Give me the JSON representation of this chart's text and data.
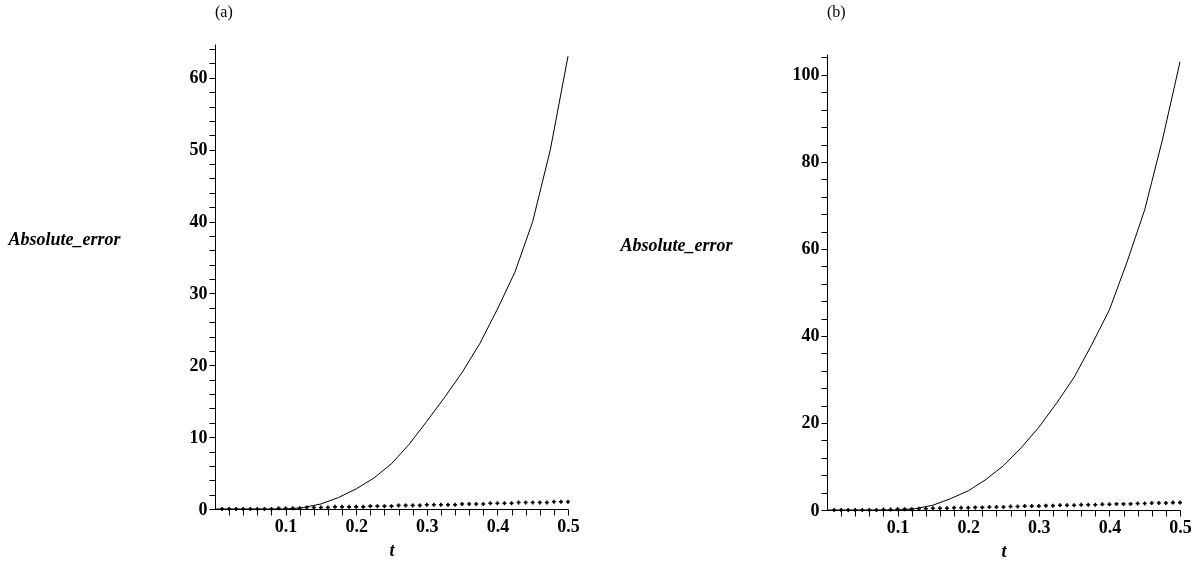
{
  "chart_data": [
    {
      "type": "line",
      "title": "(a)",
      "xlabel": "t",
      "ylabel": "Absolute_error",
      "xlim": [
        0,
        0.5
      ],
      "ylim": [
        0,
        64.7
      ],
      "xticks": [
        {
          "value": 0.02,
          "label": null
        },
        {
          "value": 0.04,
          "label": null
        },
        {
          "value": 0.06,
          "label": null
        },
        {
          "value": 0.08,
          "label": null
        },
        0.1,
        {
          "value": 0.12,
          "label": null
        },
        {
          "value": 0.14,
          "label": null
        },
        {
          "value": 0.16,
          "label": null
        },
        {
          "value": 0.18,
          "label": null
        },
        0.2,
        {
          "value": 0.22,
          "label": null
        },
        {
          "value": 0.24,
          "label": null
        },
        {
          "value": 0.26,
          "label": null
        },
        {
          "value": 0.28,
          "label": null
        },
        0.3,
        {
          "value": 0.32,
          "label": null
        },
        {
          "value": 0.34,
          "label": null
        },
        {
          "value": 0.36,
          "label": null
        },
        {
          "value": 0.38,
          "label": null
        },
        0.4,
        {
          "value": 0.42,
          "label": null
        },
        {
          "value": 0.44,
          "label": null
        },
        {
          "value": 0.46,
          "label": null
        },
        {
          "value": 0.48,
          "label": null
        },
        0.5
      ],
      "yticks": [
        0,
        {
          "value": 2,
          "label": null
        },
        {
          "value": 4,
          "label": null
        },
        {
          "value": 6,
          "label": null
        },
        {
          "value": 8,
          "label": null
        },
        10,
        {
          "value": 12,
          "label": null
        },
        {
          "value": 14,
          "label": null
        },
        {
          "value": 16,
          "label": null
        },
        {
          "value": 18,
          "label": null
        },
        20,
        {
          "value": 22,
          "label": null
        },
        {
          "value": 24,
          "label": null
        },
        {
          "value": 26,
          "label": null
        },
        {
          "value": 28,
          "label": null
        },
        30,
        {
          "value": 32,
          "label": null
        },
        {
          "value": 34,
          "label": null
        },
        {
          "value": 36,
          "label": null
        },
        {
          "value": 38,
          "label": null
        },
        40,
        {
          "value": 42,
          "label": null
        },
        {
          "value": 44,
          "label": null
        },
        {
          "value": 46,
          "label": null
        },
        {
          "value": 48,
          "label": null
        },
        50,
        {
          "value": 52,
          "label": null
        },
        {
          "value": 54,
          "label": null
        },
        {
          "value": 56,
          "label": null
        },
        {
          "value": 58,
          "label": null
        },
        60,
        {
          "value": 62,
          "label": null
        },
        {
          "value": 64,
          "label": null
        }
      ],
      "series": [
        {
          "type": "line",
          "color": "#000000",
          "x": [
            0,
            0.05,
            0.1,
            0.125,
            0.15,
            0.175,
            0.2,
            0.225,
            0.25,
            0.275,
            0.3,
            0.325,
            0.35,
            0.375,
            0.4,
            0.425,
            0.45,
            0.475,
            0.5
          ],
          "values": [
            0,
            0,
            0,
            0.2,
            0.7,
            1.6,
            2.8,
            4.3,
            6.3,
            9,
            12.2,
            15.5,
            19,
            23,
            27.8,
            33,
            40,
            50,
            63
          ]
        },
        {
          "type": "scatter",
          "marker": "cross",
          "color": "#000000",
          "x": [
            0.01,
            0.02,
            0.03,
            0.04,
            0.05,
            0.06,
            0.07,
            0.08,
            0.09,
            0.1,
            0.11,
            0.12,
            0.13,
            0.14,
            0.15,
            0.16,
            0.17,
            0.18,
            0.19,
            0.2,
            0.21,
            0.22,
            0.23,
            0.24,
            0.25,
            0.26,
            0.27,
            0.28,
            0.29,
            0.3,
            0.31,
            0.32,
            0.33,
            0.34,
            0.35,
            0.36,
            0.37,
            0.38,
            0.39,
            0.4,
            0.41,
            0.42,
            0.43,
            0.44,
            0.45,
            0.46,
            0.47,
            0.48,
            0.49,
            0.5
          ],
          "values": [
            0,
            0,
            0,
            0,
            0,
            0,
            0,
            0,
            0.1,
            0.1,
            0.1,
            0.1,
            0.2,
            0.2,
            0.2,
            0.2,
            0.3,
            0.3,
            0.3,
            0.3,
            0.3,
            0.4,
            0.4,
            0.4,
            0.4,
            0.5,
            0.5,
            0.5,
            0.5,
            0.6,
            0.6,
            0.6,
            0.6,
            0.6,
            0.7,
            0.7,
            0.7,
            0.7,
            0.8,
            0.8,
            0.8,
            0.8,
            0.9,
            0.9,
            0.9,
            0.9,
            0.9,
            1.0,
            1.0,
            1.0
          ]
        }
      ]
    },
    {
      "type": "line",
      "title": "(b)",
      "xlabel": "t",
      "ylabel": "Absolute_error",
      "xlim": [
        0,
        0.5
      ],
      "ylim": [
        0,
        104.8
      ],
      "xticks": [
        {
          "value": 0.02,
          "label": null
        },
        {
          "value": 0.04,
          "label": null
        },
        {
          "value": 0.06,
          "label": null
        },
        {
          "value": 0.08,
          "label": null
        },
        0.1,
        {
          "value": 0.12,
          "label": null
        },
        {
          "value": 0.14,
          "label": null
        },
        {
          "value": 0.16,
          "label": null
        },
        {
          "value": 0.18,
          "label": null
        },
        0.2,
        {
          "value": 0.22,
          "label": null
        },
        {
          "value": 0.24,
          "label": null
        },
        {
          "value": 0.26,
          "label": null
        },
        {
          "value": 0.28,
          "label": null
        },
        0.3,
        {
          "value": 0.32,
          "label": null
        },
        {
          "value": 0.34,
          "label": null
        },
        {
          "value": 0.36,
          "label": null
        },
        {
          "value": 0.38,
          "label": null
        },
        0.4,
        {
          "value": 0.42,
          "label": null
        },
        {
          "value": 0.44,
          "label": null
        },
        {
          "value": 0.46,
          "label": null
        },
        {
          "value": 0.48,
          "label": null
        },
        0.5
      ],
      "yticks": [
        0,
        {
          "value": 4,
          "label": null
        },
        {
          "value": 8,
          "label": null
        },
        {
          "value": 12,
          "label": null
        },
        {
          "value": 16,
          "label": null
        },
        20,
        {
          "value": 24,
          "label": null
        },
        {
          "value": 28,
          "label": null
        },
        {
          "value": 32,
          "label": null
        },
        {
          "value": 36,
          "label": null
        },
        40,
        {
          "value": 44,
          "label": null
        },
        {
          "value": 48,
          "label": null
        },
        {
          "value": 52,
          "label": null
        },
        {
          "value": 56,
          "label": null
        },
        60,
        {
          "value": 64,
          "label": null
        },
        {
          "value": 68,
          "label": null
        },
        {
          "value": 72,
          "label": null
        },
        {
          "value": 76,
          "label": null
        },
        80,
        {
          "value": 84,
          "label": null
        },
        {
          "value": 88,
          "label": null
        },
        {
          "value": 92,
          "label": null
        },
        {
          "value": 96,
          "label": null
        },
        100,
        {
          "value": 104,
          "label": null
        }
      ],
      "series": [
        {
          "type": "line",
          "color": "#000000",
          "x": [
            0,
            0.05,
            0.1,
            0.125,
            0.15,
            0.175,
            0.2,
            0.225,
            0.25,
            0.275,
            0.3,
            0.325,
            0.35,
            0.375,
            0.4,
            0.425,
            0.45,
            0.475,
            0.5
          ],
          "values": [
            0,
            0,
            0,
            0.3,
            1.1,
            2.6,
            4.4,
            7,
            10.2,
            14.3,
            19,
            24.5,
            30.5,
            38,
            46,
            57,
            69,
            85,
            103
          ]
        },
        {
          "type": "scatter",
          "marker": "cross",
          "color": "#000000",
          "x": [
            0.01,
            0.02,
            0.03,
            0.04,
            0.05,
            0.06,
            0.07,
            0.08,
            0.09,
            0.1,
            0.11,
            0.12,
            0.13,
            0.14,
            0.15,
            0.16,
            0.17,
            0.18,
            0.19,
            0.2,
            0.21,
            0.22,
            0.23,
            0.24,
            0.25,
            0.26,
            0.27,
            0.28,
            0.29,
            0.3,
            0.31,
            0.32,
            0.33,
            0.34,
            0.35,
            0.36,
            0.37,
            0.38,
            0.39,
            0.4,
            0.41,
            0.42,
            0.43,
            0.44,
            0.45,
            0.46,
            0.47,
            0.48,
            0.49,
            0.5
          ],
          "values": [
            0,
            0,
            0,
            0,
            0,
            0,
            0,
            0.1,
            0.1,
            0.2,
            0.2,
            0.2,
            0.3,
            0.3,
            0.4,
            0.4,
            0.4,
            0.5,
            0.5,
            0.5,
            0.6,
            0.6,
            0.7,
            0.7,
            0.7,
            0.8,
            0.8,
            0.9,
            0.9,
            0.9,
            1.0,
            1.0,
            1.1,
            1.1,
            1.1,
            1.2,
            1.2,
            1.2,
            1.3,
            1.3,
            1.4,
            1.4,
            1.4,
            1.5,
            1.5,
            1.6,
            1.6,
            1.6,
            1.7,
            1.7
          ]
        }
      ]
    }
  ]
}
